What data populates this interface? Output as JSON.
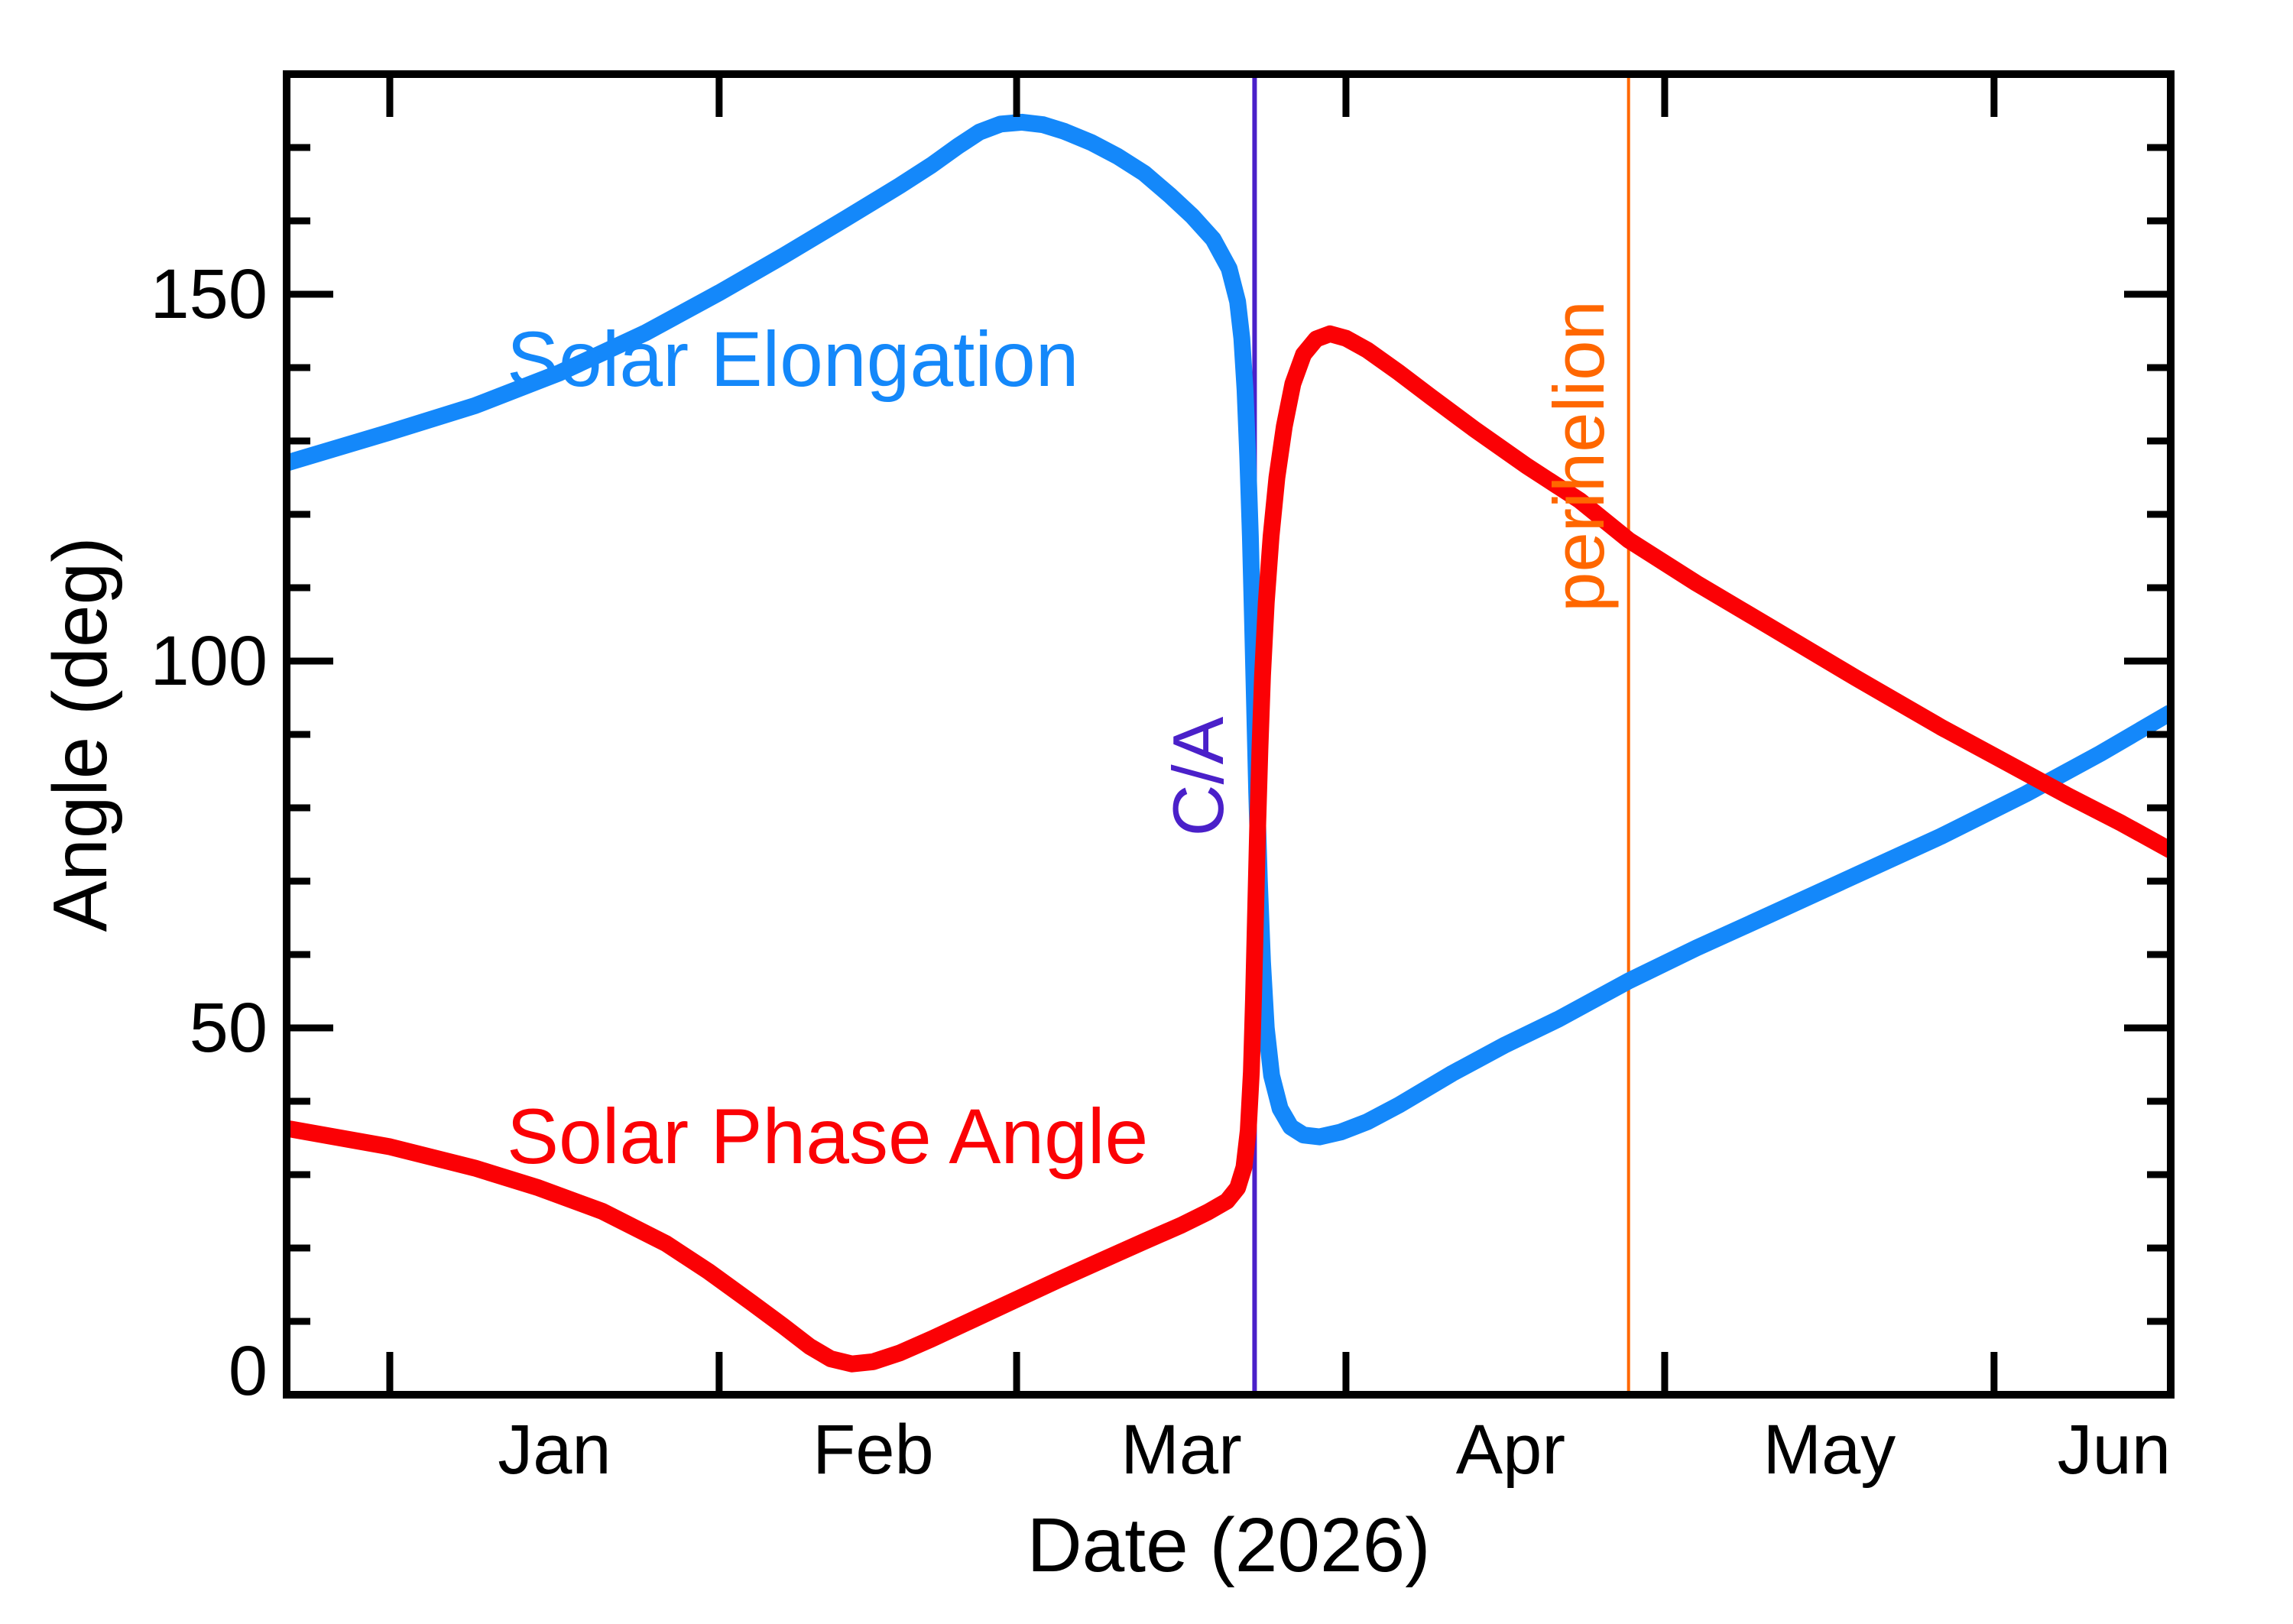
{
  "chart_data": {
    "type": "line",
    "title": "",
    "xlabel": "Date (2026)",
    "ylabel": "Angle (deg)",
    "background": "#ffffff",
    "frame_color": "#000000",
    "grid": false,
    "legend_position": "inline-labels",
    "x_axis": {
      "unit": "days since 2026-01-01",
      "min": -9.71,
      "max": 167.63,
      "month_tick_days": [
        0,
        31,
        59,
        90,
        120,
        151
      ],
      "month_labels": [
        "Jan",
        "Feb",
        "Mar",
        "Apr",
        "May",
        "Jun"
      ],
      "month_label_days": [
        15.5,
        45.5,
        74.5,
        105.5,
        135.5,
        165.5
      ]
    },
    "y_axis": {
      "min": 0,
      "max": 180,
      "major_ticks": [
        0,
        50,
        100,
        150
      ],
      "major_tick_labels": [
        "0",
        "50",
        "100",
        "150"
      ],
      "minor_tick_step": 10
    },
    "series": [
      {
        "name": "Solar Elongation",
        "color": "#1488fa",
        "points": [
          [
            -9.71,
            127
          ],
          [
            0,
            131.2
          ],
          [
            8,
            134.8
          ],
          [
            16,
            139.3
          ],
          [
            24,
            144.7
          ],
          [
            31,
            150.2
          ],
          [
            37,
            155.2
          ],
          [
            43,
            160.4
          ],
          [
            48,
            164.8
          ],
          [
            51,
            167.6
          ],
          [
            53.5,
            170.2
          ],
          [
            55.5,
            172.1
          ],
          [
            57.5,
            173.2
          ],
          [
            59.5,
            173.45
          ],
          [
            61.5,
            173.1
          ],
          [
            63.5,
            172.2
          ],
          [
            66,
            170.7
          ],
          [
            68.5,
            168.8
          ],
          [
            71,
            166.5
          ],
          [
            73.5,
            163.4
          ],
          [
            75.5,
            160.7
          ],
          [
            77.5,
            157.5
          ],
          [
            79,
            153.5
          ],
          [
            79.8,
            149
          ],
          [
            80.2,
            144
          ],
          [
            80.5,
            137
          ],
          [
            80.75,
            128
          ],
          [
            81,
            117
          ],
          [
            81.2,
            106
          ],
          [
            81.4,
            94
          ],
          [
            81.6,
            82
          ],
          [
            81.85,
            70
          ],
          [
            82.15,
            59
          ],
          [
            82.5,
            50
          ],
          [
            83,
            43.5
          ],
          [
            83.8,
            39
          ],
          [
            84.8,
            36.5
          ],
          [
            86,
            35.4
          ],
          [
            87.5,
            35.15
          ],
          [
            89.5,
            35.8
          ],
          [
            92,
            37.2
          ],
          [
            95,
            39.5
          ],
          [
            100,
            43.8
          ],
          [
            105,
            47.7
          ],
          [
            110,
            51.2
          ],
          [
            116.6,
            56.4
          ],
          [
            123,
            60.9
          ],
          [
            130,
            65.5
          ],
          [
            138,
            70.8
          ],
          [
            146,
            76.1
          ],
          [
            154,
            81.9
          ],
          [
            161,
            87.4
          ],
          [
            167.63,
            93
          ]
        ]
      },
      {
        "name": "Solar Phase Angle",
        "color": "#fb0105",
        "points": [
          [
            -9.71,
            36.3
          ],
          [
            0,
            33.8
          ],
          [
            8,
            30.9
          ],
          [
            14,
            28.2
          ],
          [
            20,
            25
          ],
          [
            26,
            20.6
          ],
          [
            30,
            16.8
          ],
          [
            34,
            12.6
          ],
          [
            37,
            9.4
          ],
          [
            39.5,
            6.6
          ],
          [
            41.5,
            4.9
          ],
          [
            43.5,
            4.2
          ],
          [
            45.5,
            4.5
          ],
          [
            48,
            5.7
          ],
          [
            51,
            7.6
          ],
          [
            55,
            10.3
          ],
          [
            59,
            13
          ],
          [
            63,
            15.7
          ],
          [
            67,
            18.3
          ],
          [
            71,
            20.9
          ],
          [
            74.5,
            23.1
          ],
          [
            77,
            24.9
          ],
          [
            78.8,
            26.4
          ],
          [
            79.8,
            28.2
          ],
          [
            80.4,
            31
          ],
          [
            80.8,
            36
          ],
          [
            81.1,
            44
          ],
          [
            81.3,
            54
          ],
          [
            81.5,
            66
          ],
          [
            81.7,
            78
          ],
          [
            81.9,
            88
          ],
          [
            82.15,
            98
          ],
          [
            82.5,
            108
          ],
          [
            82.95,
            117
          ],
          [
            83.5,
            125
          ],
          [
            84.2,
            132
          ],
          [
            85,
            137.8
          ],
          [
            86,
            141.8
          ],
          [
            87.2,
            143.9
          ],
          [
            88.5,
            144.6
          ],
          [
            90,
            144
          ],
          [
            92,
            142.4
          ],
          [
            95,
            139.3
          ],
          [
            98,
            136
          ],
          [
            102,
            131.7
          ],
          [
            107,
            126.6
          ],
          [
            112,
            121.9
          ],
          [
            116.6,
            116.5
          ],
          [
            123,
            110.6
          ],
          [
            130,
            104.6
          ],
          [
            138,
            97.7
          ],
          [
            146,
            91
          ],
          [
            152,
            86.3
          ],
          [
            158,
            81.6
          ],
          [
            163,
            77.9
          ],
          [
            167.63,
            74.2
          ]
        ]
      }
    ],
    "events": [
      {
        "name": "C/A",
        "day": 81.4,
        "color": "#4a20c9",
        "line_width": 6
      },
      {
        "name": "perihelion",
        "day": 116.6,
        "color": "#ff6700",
        "line_width": 4
      }
    ]
  },
  "labels": {
    "y_axis_title": "Angle (deg)",
    "x_axis_title": "Date (2026)"
  }
}
